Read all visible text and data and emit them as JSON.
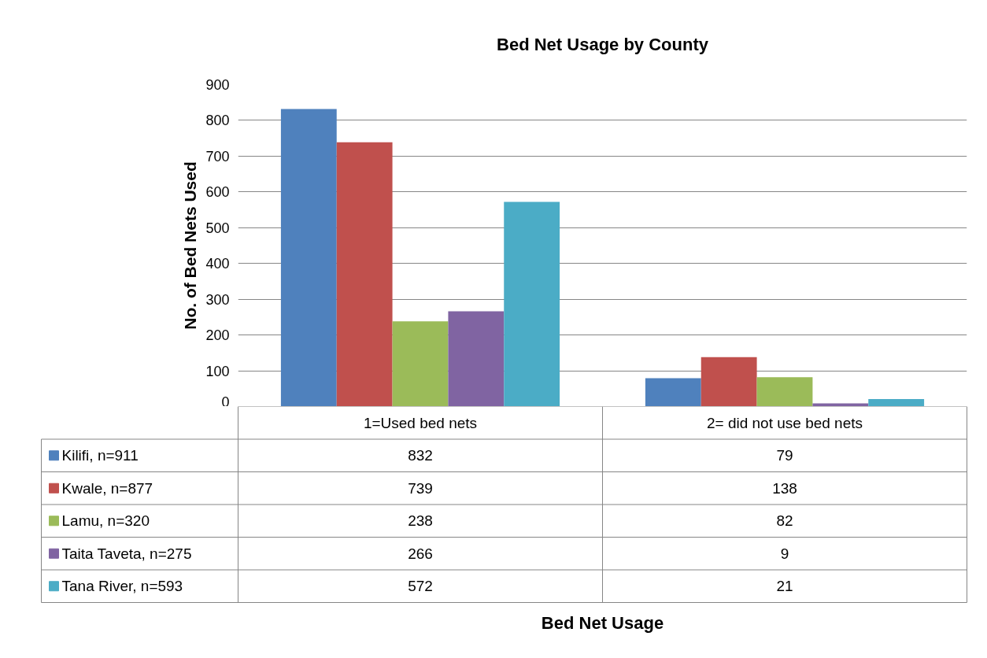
{
  "chart_data": {
    "type": "bar",
    "title": "Bed Net Usage by County",
    "annotations": [
      "Bed Net Usage"
    ],
    "ylabel": "No. of Bed Nets Used",
    "categories": [
      "1=Used bed nets",
      "2= did not use bed nets"
    ],
    "series": [
      {
        "name": "Kilifi, n=911",
        "color": "#4f81bd",
        "values": [
          832,
          79
        ]
      },
      {
        "name": "Kwale, n=877",
        "color": "#c0504d",
        "values": [
          739,
          138
        ]
      },
      {
        "name": "Lamu, n=320",
        "color": "#9bbb59",
        "values": [
          238,
          82
        ]
      },
      {
        "name": "Taita Taveta, n=275",
        "color": "#8064a2",
        "values": [
          266,
          9
        ]
      },
      {
        "name": "Tana River, n=593",
        "color": "#4bacc6",
        "values": [
          572,
          21
        ]
      }
    ],
    "ylim": [
      0,
      900
    ],
    "yticks": [
      0,
      100,
      200,
      300,
      400,
      500,
      600,
      700,
      800,
      900
    ],
    "grid": "y",
    "legend": "bottom",
    "data_labels": true
  }
}
